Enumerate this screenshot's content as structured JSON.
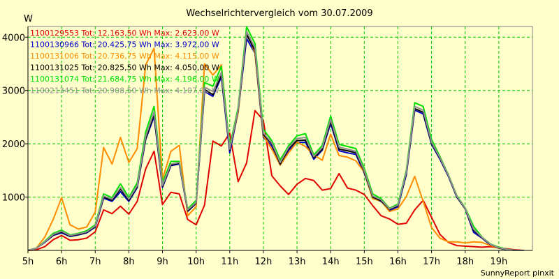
{
  "chart_data": {
    "type": "line",
    "title": "Wechselrichtervergleich vom 30.07.2009",
    "ylabel": "W",
    "xlabel": "",
    "footer": "SunnyReport pinxit",
    "xlim": [
      5,
      20
    ],
    "ylim": [
      0,
      4200
    ],
    "xticks": [
      5,
      6,
      7,
      8,
      9,
      10,
      11,
      12,
      13,
      14,
      15,
      16,
      17,
      18,
      19
    ],
    "xtick_labels": [
      "5h",
      "6h",
      "7h",
      "8h",
      "9h",
      "10h",
      "11h",
      "12h",
      "13h",
      "14h",
      "15h",
      "16h",
      "17h",
      "18h",
      "19h"
    ],
    "yticks": [
      1000,
      2000,
      3000,
      4000
    ],
    "ytick_labels": [
      "1000",
      "2000",
      "3000",
      "4000"
    ],
    "grid": true,
    "legend_position": "top-left",
    "x": [
      5.0,
      5.25,
      5.5,
      5.75,
      6.0,
      6.25,
      6.5,
      6.75,
      7.0,
      7.25,
      7.5,
      7.75,
      8.0,
      8.25,
      8.5,
      8.75,
      9.0,
      9.25,
      9.5,
      9.75,
      10.0,
      10.25,
      10.5,
      10.75,
      11.0,
      11.25,
      11.5,
      11.75,
      12.0,
      12.25,
      12.5,
      12.75,
      13.0,
      13.25,
      13.5,
      13.75,
      14.0,
      14.25,
      14.5,
      14.75,
      15.0,
      15.25,
      15.5,
      15.75,
      16.0,
      16.25,
      16.5,
      16.75,
      17.0,
      17.25,
      17.5,
      17.75,
      18.0,
      18.25,
      18.5,
      18.75,
      19.0,
      19.25,
      19.5,
      19.75
    ],
    "series": [
      {
        "name": "1100129553",
        "legend": "1100129553 Tot: 12.163,50 Wh Max: 2.623,00 W",
        "color": "#e00000",
        "values": [
          0,
          10,
          70,
          200,
          280,
          190,
          200,
          230,
          350,
          760,
          690,
          830,
          680,
          920,
          1530,
          1860,
          860,
          1090,
          1060,
          580,
          480,
          850,
          2050,
          1960,
          2200,
          1290,
          1640,
          2623,
          2440,
          1400,
          1210,
          1050,
          1240,
          1350,
          1310,
          1130,
          1160,
          1440,
          1170,
          1130,
          1050,
          840,
          650,
          590,
          490,
          510,
          760,
          940,
          620,
          300,
          150,
          90,
          80,
          70,
          60,
          70,
          50,
          30,
          10,
          0
        ]
      },
      {
        "name": "1100130966",
        "legend": "1100130966 Tot: 20.425,75 Wh Max: 3.972,00 W",
        "color": "#0000c8",
        "values": [
          0,
          40,
          150,
          280,
          330,
          260,
          290,
          330,
          440,
          980,
          920,
          1100,
          920,
          1180,
          2080,
          2510,
          1180,
          1590,
          1620,
          730,
          880,
          2980,
          2890,
          3250,
          1830,
          2600,
          3972,
          3700,
          2120,
          1960,
          1600,
          1880,
          2020,
          2030,
          1710,
          1880,
          2380,
          1870,
          1830,
          1800,
          1450,
          980,
          920,
          750,
          820,
          1420,
          2630,
          2560,
          1990,
          1710,
          1390,
          1000,
          780,
          340,
          230,
          100,
          40,
          15,
          0,
          0
        ]
      },
      {
        "name": "1100131006",
        "legend": "1100131006 Tot: 20.736,75 Wh Max: 4.115,00 W",
        "color": "#ff8c00",
        "values": [
          0,
          40,
          250,
          580,
          990,
          480,
          400,
          440,
          720,
          1930,
          1620,
          2120,
          1650,
          1910,
          3480,
          3790,
          1330,
          1860,
          1970,
          650,
          820,
          3500,
          3290,
          3480,
          1920,
          2580,
          4115,
          3700,
          2150,
          1900,
          1600,
          1830,
          2030,
          1950,
          1790,
          1690,
          2180,
          1780,
          1750,
          1680,
          1470,
          970,
          930,
          730,
          780,
          1010,
          1390,
          920,
          430,
          230,
          160,
          160,
          140,
          160,
          150,
          90,
          40,
          20,
          0,
          0
        ]
      },
      {
        "name": "1100131025",
        "legend": "1100131025 Tot: 20.825,50 Wh Max: 4.050,00 W",
        "color": "#000000",
        "values": [
          0,
          40,
          160,
          290,
          350,
          270,
          300,
          340,
          450,
          1000,
          940,
          1150,
          940,
          1200,
          2100,
          2550,
          1200,
          1600,
          1640,
          740,
          890,
          3020,
          2920,
          3290,
          1880,
          2620,
          4050,
          3750,
          2170,
          2000,
          1620,
          1910,
          2060,
          2070,
          1740,
          1900,
          2420,
          1900,
          1870,
          1830,
          1480,
          1000,
          930,
          770,
          840,
          1450,
          2660,
          2590,
          2010,
          1730,
          1400,
          1010,
          780,
          380,
          240,
          110,
          45,
          15,
          0,
          0
        ]
      },
      {
        "name": "1100131074",
        "legend": "1100131074 Tot: 21.684,75 Wh Max: 4.196,00 W",
        "color": "#00e000",
        "values": [
          0,
          40,
          170,
          320,
          380,
          290,
          320,
          370,
          480,
          1060,
          990,
          1250,
          990,
          1270,
          2220,
          2700,
          1270,
          1670,
          1670,
          780,
          940,
          3150,
          3080,
          3450,
          1950,
          2680,
          4196,
          3880,
          2270,
          2060,
          1700,
          1960,
          2150,
          2190,
          1790,
          1970,
          2520,
          1990,
          1950,
          1910,
          1540,
          1060,
          970,
          790,
          870,
          1500,
          2770,
          2700,
          2080,
          1760,
          1420,
          1030,
          800,
          450,
          250,
          120,
          60,
          20,
          0,
          0
        ]
      },
      {
        "name": "1100213451",
        "legend": "1100213451 Tot: 20.908,50 Wh Max: 4.107,00 W",
        "color": "#909090",
        "values": [
          0,
          40,
          160,
          300,
          360,
          280,
          310,
          350,
          460,
          1020,
          960,
          1180,
          960,
          1220,
          2140,
          2600,
          1220,
          1620,
          1650,
          760,
          900,
          3060,
          2980,
          3340,
          1900,
          2640,
          4107,
          3800,
          2200,
          2020,
          1650,
          1930,
          2100,
          2120,
          1760,
          1930,
          2460,
          1940,
          1900,
          1860,
          1500,
          1020,
          950,
          780,
          850,
          1470,
          2700,
          2630,
          2030,
          1740,
          1410,
          1020,
          790,
          400,
          245,
          115,
          50,
          18,
          0,
          0
        ]
      }
    ]
  }
}
